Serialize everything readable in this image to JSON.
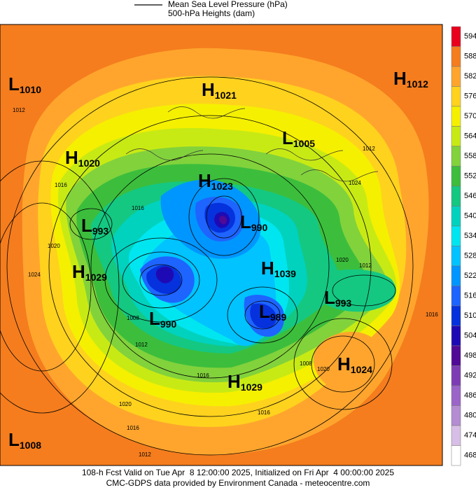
{
  "legend": {
    "line_label": "Mean Sea Level Pressure (hPa)",
    "fill_label": "500-hPa Heights (dam)"
  },
  "colorbar": {
    "ticks": [
      594,
      588,
      582,
      576,
      570,
      564,
      558,
      552,
      546,
      540,
      534,
      528,
      522,
      516,
      510,
      504,
      498,
      492,
      486,
      480,
      474,
      468
    ],
    "colors": [
      "#e8001c",
      "#f57d1e",
      "#ffa52d",
      "#ffd21e",
      "#f5f000",
      "#c8ea14",
      "#82d23c",
      "#3cbe3c",
      "#14c882",
      "#00d2be",
      "#00e6f0",
      "#00c3ff",
      "#0096ff",
      "#1e64ff",
      "#0532dc",
      "#1e0ab4",
      "#500a96",
      "#7d3cb4",
      "#9b64c8",
      "#b48cd2",
      "#d7bee6",
      "#ffffff"
    ]
  },
  "centers": [
    {
      "type": "L",
      "value": "1010"
    },
    {
      "type": "H",
      "value": "1021"
    },
    {
      "type": "H",
      "value": "1012"
    },
    {
      "type": "L",
      "value": "1005"
    },
    {
      "type": "H",
      "value": "1020"
    },
    {
      "type": "H",
      "value": "1023"
    },
    {
      "type": "L",
      "value": "993"
    },
    {
      "type": "L",
      "value": "990"
    },
    {
      "type": "H",
      "value": "1039"
    },
    {
      "type": "L",
      "value": "993"
    },
    {
      "type": "H",
      "value": "1029"
    },
    {
      "type": "L",
      "value": "990"
    },
    {
      "type": "L",
      "value": "989"
    },
    {
      "type": "H",
      "value": "1024"
    },
    {
      "type": "H",
      "value": "1029"
    },
    {
      "type": "L",
      "value": "1008"
    }
  ],
  "isobar_labels": [
    "1012",
    "1016",
    "1020",
    "1024",
    "1016",
    "1008",
    "1012",
    "1016",
    "1020",
    "1016",
    "1012",
    "1012",
    "1024",
    "1020",
    "1012",
    "1016",
    "1020",
    "1008",
    "1016"
  ],
  "footer": {
    "line1": "108-h Fcst Valid on Tue Apr  8 12:00:00 2025, Initialized on Fri Apr  4 00:00:00 2025",
    "line2": "CMC-GDPS data provided by Environment Canada - meteocentre.com"
  }
}
